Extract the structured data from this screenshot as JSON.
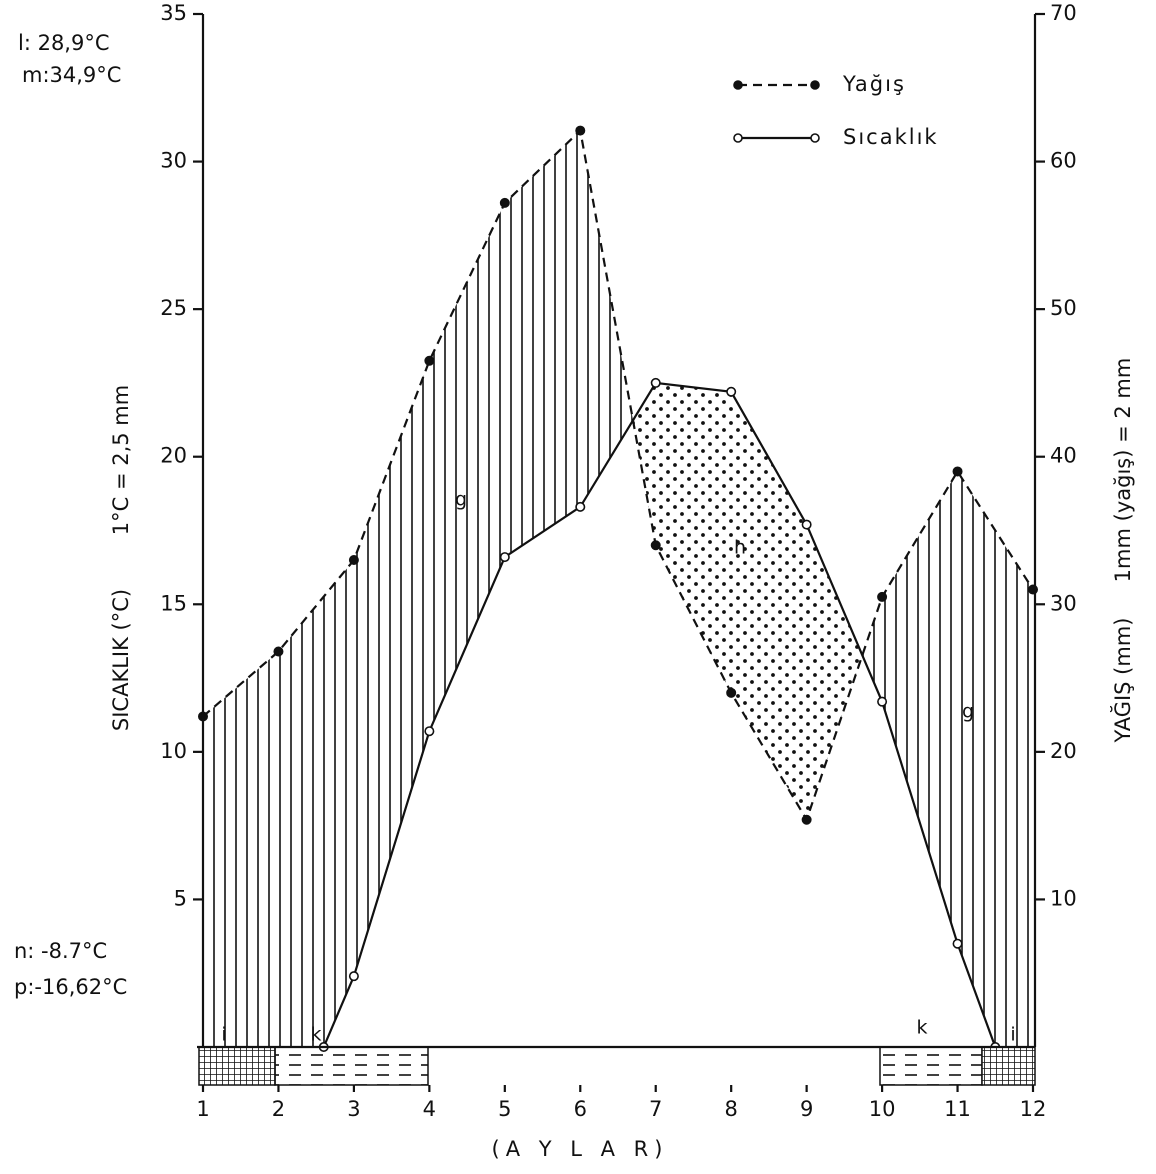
{
  "chart_data": {
    "type": "line",
    "x_label": "(A Y L A R)",
    "y_label": "SICAKLIK (°C)",
    "y_scale_note": "1°C = 2,5 mm",
    "y2_label": "YAĞIŞ (mm)",
    "y2_scale_note": "1mm (yağış) = 2 mm",
    "notes": [
      "l: 28,9°C",
      "m:34,9°C",
      "n: -8.7°C",
      "p:-16,62°C"
    ],
    "annotations": [
      "g",
      "h",
      "g",
      "i",
      "k",
      "k",
      "i"
    ],
    "xlim": [
      1,
      12
    ],
    "xticks": [
      1,
      2,
      3,
      4,
      5,
      6,
      7,
      8,
      9,
      10,
      11,
      12
    ],
    "ylim": [
      0,
      35
    ],
    "yticks": [
      5,
      10,
      15,
      20,
      25,
      30,
      35
    ],
    "y2lim": [
      0,
      70
    ],
    "y2ticks": [
      10,
      20,
      30,
      40,
      50,
      60,
      70
    ],
    "legend": "top-right",
    "series": [
      {
        "name": "Yağış",
        "axis": "y2",
        "color": "#111111",
        "style": "dashed",
        "x": [
          1,
          2,
          3,
          4,
          5,
          6,
          7,
          8,
          9,
          10,
          11,
          12
        ],
        "values": [
          22.4,
          26.8,
          33,
          46.5,
          57.2,
          62.1,
          34,
          24,
          15.4,
          30.5,
          39,
          31
        ]
      },
      {
        "name": "Sıcaklık",
        "color": "#111111",
        "style": "solid",
        "x": [
          2.6,
          3,
          4,
          5,
          6,
          7,
          8,
          9,
          10,
          11,
          11.5
        ],
        "values": [
          0,
          2.4,
          10.7,
          16.6,
          18.3,
          22.5,
          22.2,
          17.7,
          11.7,
          3.5,
          0
        ]
      }
    ]
  }
}
